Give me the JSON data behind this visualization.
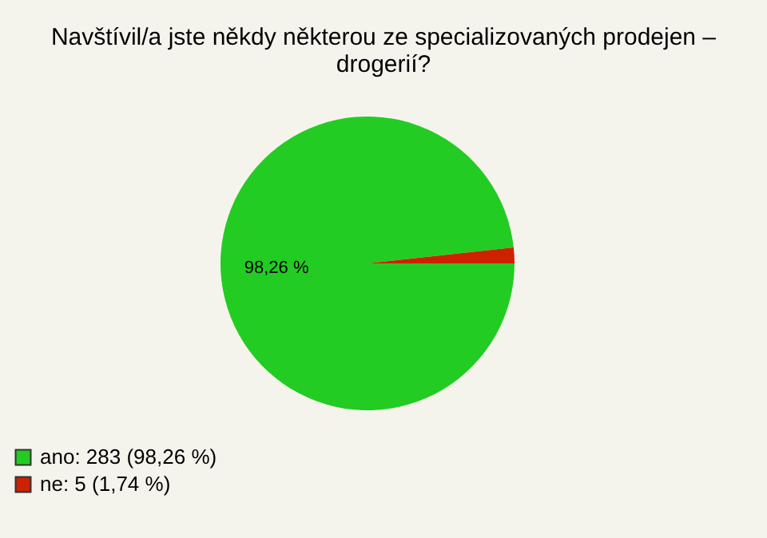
{
  "chart_data": {
    "type": "pie",
    "title": [
      "Navštívil/a jste někdy některou ze specializovaných prodejen –",
      "drogerií?"
    ],
    "categories": [
      "ano: 283 (98,26 %)",
      "ne: 5 (1,74 %)"
    ],
    "values": [
      98.26,
      1.74
    ],
    "colors": [
      "#22cc22",
      "#cc2200"
    ],
    "value_labels": [
      "98,26 %",
      null
    ],
    "legend": "bottom left"
  }
}
